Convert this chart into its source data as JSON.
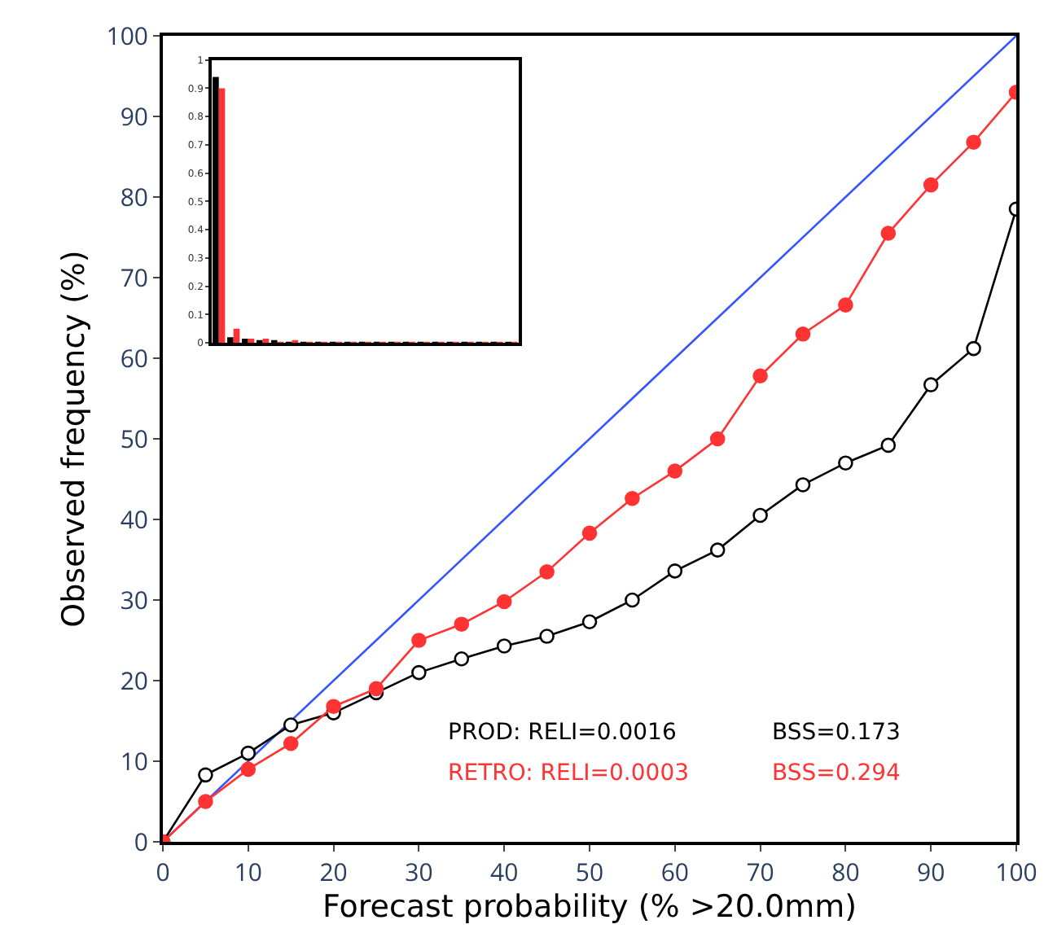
{
  "chart_data": [
    {
      "type": "line",
      "xlabel": "Forecast probability (% >20.0mm)",
      "ylabel": "Observed frequency (%)",
      "x": [
        0,
        5,
        10,
        15,
        20,
        25,
        30,
        35,
        40,
        45,
        50,
        55,
        60,
        65,
        70,
        75,
        80,
        85,
        90,
        95,
        100
      ],
      "series": [
        {
          "color": "#3355ff",
          "x": [
            0,
            100
          ],
          "values": [
            0,
            100
          ],
          "marker": "none"
        },
        {
          "color": "#000000",
          "marker": "circle-open",
          "values": [
            0,
            8.3,
            11,
            14.5,
            16,
            18.5,
            21,
            22.7,
            24.3,
            25.5,
            27.3,
            30,
            33.6,
            36.2,
            40.5,
            44.3,
            47,
            49.2,
            56.7,
            61.2,
            78.5
          ]
        },
        {
          "color": "#ff3333",
          "marker": "circle",
          "values": [
            0,
            5,
            9,
            12.2,
            16.8,
            19,
            25,
            27,
            29.8,
            33.5,
            38.3,
            42.6,
            46,
            50,
            57.8,
            63,
            66.6,
            75.5,
            81.5,
            86.8,
            93
          ]
        }
      ],
      "xlim": [
        0,
        100
      ],
      "ylim": [
        0,
        100
      ],
      "xticks": [
        0,
        10,
        20,
        30,
        40,
        50,
        60,
        70,
        80,
        90,
        100
      ],
      "yticks": [
        0,
        10,
        20,
        30,
        40,
        50,
        60,
        70,
        80,
        90,
        100
      ],
      "line_style": "solid",
      "annotations": [
        "PROD: RELI=0.0016",
        "BSS=0.173",
        "RETRO: RELI=0.0003",
        "BSS=0.294"
      ]
    },
    {
      "type": "bar",
      "categories": [
        null,
        null,
        null,
        null,
        null,
        null,
        null,
        null,
        null,
        null,
        null,
        null,
        null,
        null,
        null,
        null,
        null,
        null,
        null,
        null,
        null
      ],
      "series": [
        {
          "color": "#000000",
          "values": [
            0.94,
            0.02,
            0.015,
            0.01,
            0.005,
            0.003,
            0.002,
            0.002,
            0.001,
            0.001,
            0.001,
            0.001,
            0.001,
            0.001,
            0.001,
            0.001,
            0.001,
            0.001,
            0.001,
            0.001,
            0.001
          ]
        },
        {
          "color": "#ff3333",
          "values": [
            0.9,
            0.05,
            0.015,
            0.015,
            0.004,
            0.008,
            0.003,
            0.002,
            0.002,
            0.002,
            0.001,
            0.001,
            0.001,
            0.001,
            0.001,
            0.001,
            0.001,
            0.001,
            0.001,
            0.001,
            0.001
          ]
        }
      ],
      "ylim": [
        0,
        1
      ],
      "yticks": [
        0,
        0.1,
        0.2,
        0.3,
        0.4,
        0.5,
        0.6,
        0.7,
        0.8,
        0.9,
        1
      ],
      "tick_labels": "y"
    }
  ]
}
